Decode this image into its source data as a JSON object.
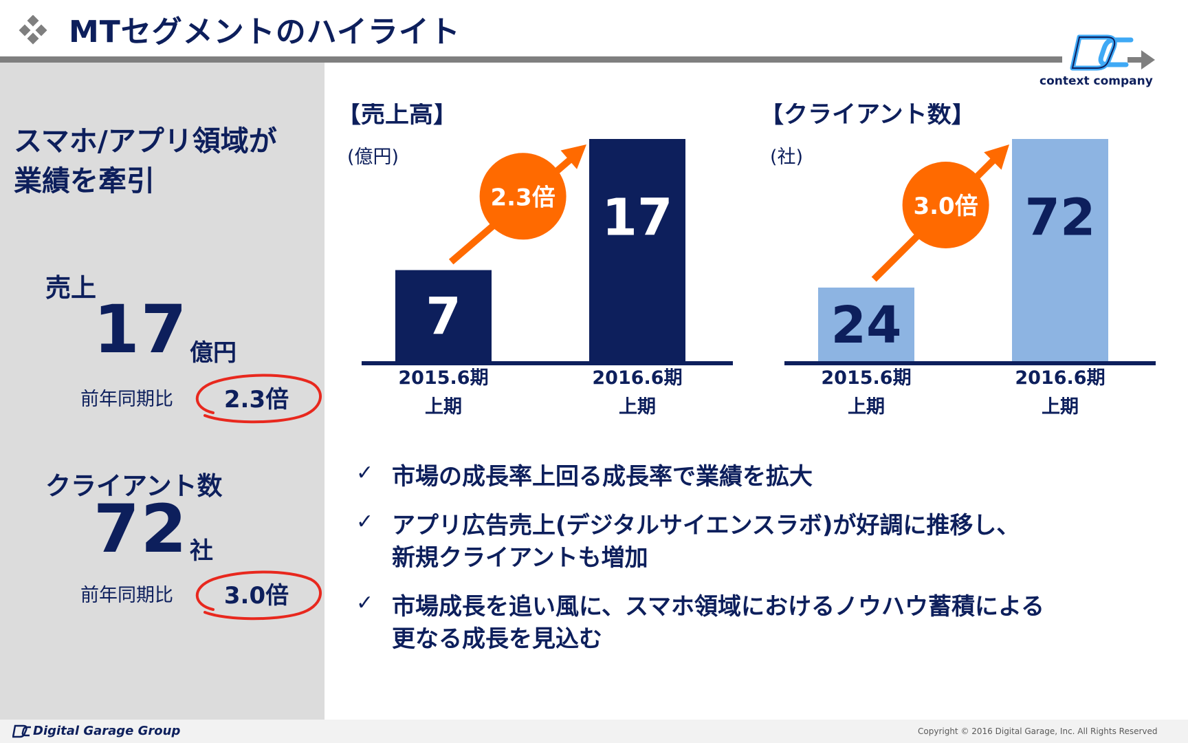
{
  "header": {
    "title": "MTセグメントのハイライト",
    "logo_text": "context company"
  },
  "left": {
    "headline": [
      "スマホ/アプリ領域が",
      "業績を牽引"
    ],
    "sales": {
      "label": "売上",
      "value": "17",
      "unit": "億円",
      "yoy_label": "前年同期比",
      "yoy_value": "2.3倍"
    },
    "clients": {
      "label": "クライアント数",
      "value": "72",
      "unit": "社",
      "yoy_label": "前年同期比",
      "yoy_value": "3.0倍"
    }
  },
  "chart_data": [
    {
      "type": "bar",
      "title": "【売上高】",
      "ylabel": "(億円)",
      "categories": [
        "2015.6期\n上期",
        "2016.6期\n上期"
      ],
      "category_lines": [
        [
          "2015.6期",
          "上期"
        ],
        [
          "2016.6期",
          "上期"
        ]
      ],
      "values": [
        7,
        17
      ],
      "value_labels": [
        "7",
        "17"
      ],
      "growth_badge": "2.3倍",
      "ylim": [
        0,
        17
      ],
      "color": "#0d1f5c",
      "label_color": "#ffffff"
    },
    {
      "type": "bar",
      "title": "【クライアント数】",
      "ylabel": "(社)",
      "categories": [
        "2015.6期\n上期",
        "2016.6期\n上期"
      ],
      "category_lines": [
        [
          "2015.6期",
          "上期"
        ],
        [
          "2016.6期",
          "上期"
        ]
      ],
      "values": [
        24,
        72
      ],
      "value_labels": [
        "24",
        "72"
      ],
      "growth_badge": "3.0倍",
      "ylim": [
        0,
        72
      ],
      "color": "#8db4e2",
      "label_color": "#0d1f5c"
    }
  ],
  "bullets": [
    {
      "check": "✓",
      "lines": [
        "市場の成長率上回る成長率で業績を拡大"
      ]
    },
    {
      "check": "✓",
      "lines": [
        "アプリ広告売上(デジタルサイエンスラボ)が好調に推移し、",
        "新規クライアントも増加"
      ]
    },
    {
      "check": "✓",
      "lines": [
        "市場成長を追い風に、スマホ領域におけるノウハウ蓄積による",
        "更なる成長を見込む"
      ]
    }
  ],
  "footer": {
    "group_name": "Digital Garage Group",
    "copyright": "Copyright © 2016 Digital Garage, Inc. All Rights Reserved"
  },
  "colors": {
    "navy": "#0d1f5c",
    "orange": "#ff6a00",
    "red_circle": "#e8281e",
    "light_blue": "#8db4e2",
    "gray_panel": "#dcdcdc"
  }
}
